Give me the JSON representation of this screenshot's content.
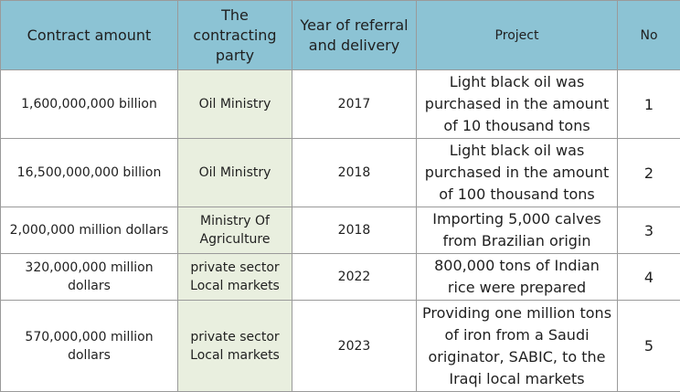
{
  "table": {
    "headers": {
      "amount": "Contract amount",
      "party": "The contracting party",
      "year": "Year of referral and delivery",
      "project": "Project",
      "no": "No"
    },
    "rows": [
      {
        "amount": "1,600,000,000 billion",
        "party": "Oil Ministry",
        "year": "2017",
        "project": "Light black oil was purchased in the amount of 10 thousand tons",
        "no": "1"
      },
      {
        "amount": "16,500,000,000 billion",
        "party": "Oil Ministry",
        "year": "2018",
        "project": "Light black oil was purchased in the amount of 100 thousand tons",
        "no": "2"
      },
      {
        "amount": "2,000,000 million dollars",
        "party": "Ministry Of Agriculture",
        "year": "2018",
        "project": "Importing 5,000 calves from Brazilian origin",
        "no": "3"
      },
      {
        "amount": "320,000,000 million dollars",
        "party": "private sector Local markets",
        "year": "2022",
        "project": "800,000 tons of Indian rice were prepared",
        "no": "4"
      },
      {
        "amount": "570,000,000 million dollars",
        "party": "private sector Local markets",
        "year": "2023",
        "project": "Providing one million tons of iron from a Saudi originator, SABIC, to the Iraqi local markets",
        "no": "5"
      }
    ]
  },
  "colors": {
    "header_bg": "#8cc3d4",
    "party_cell_bg": "#e9efdf",
    "border": "#9a9a9a"
  }
}
